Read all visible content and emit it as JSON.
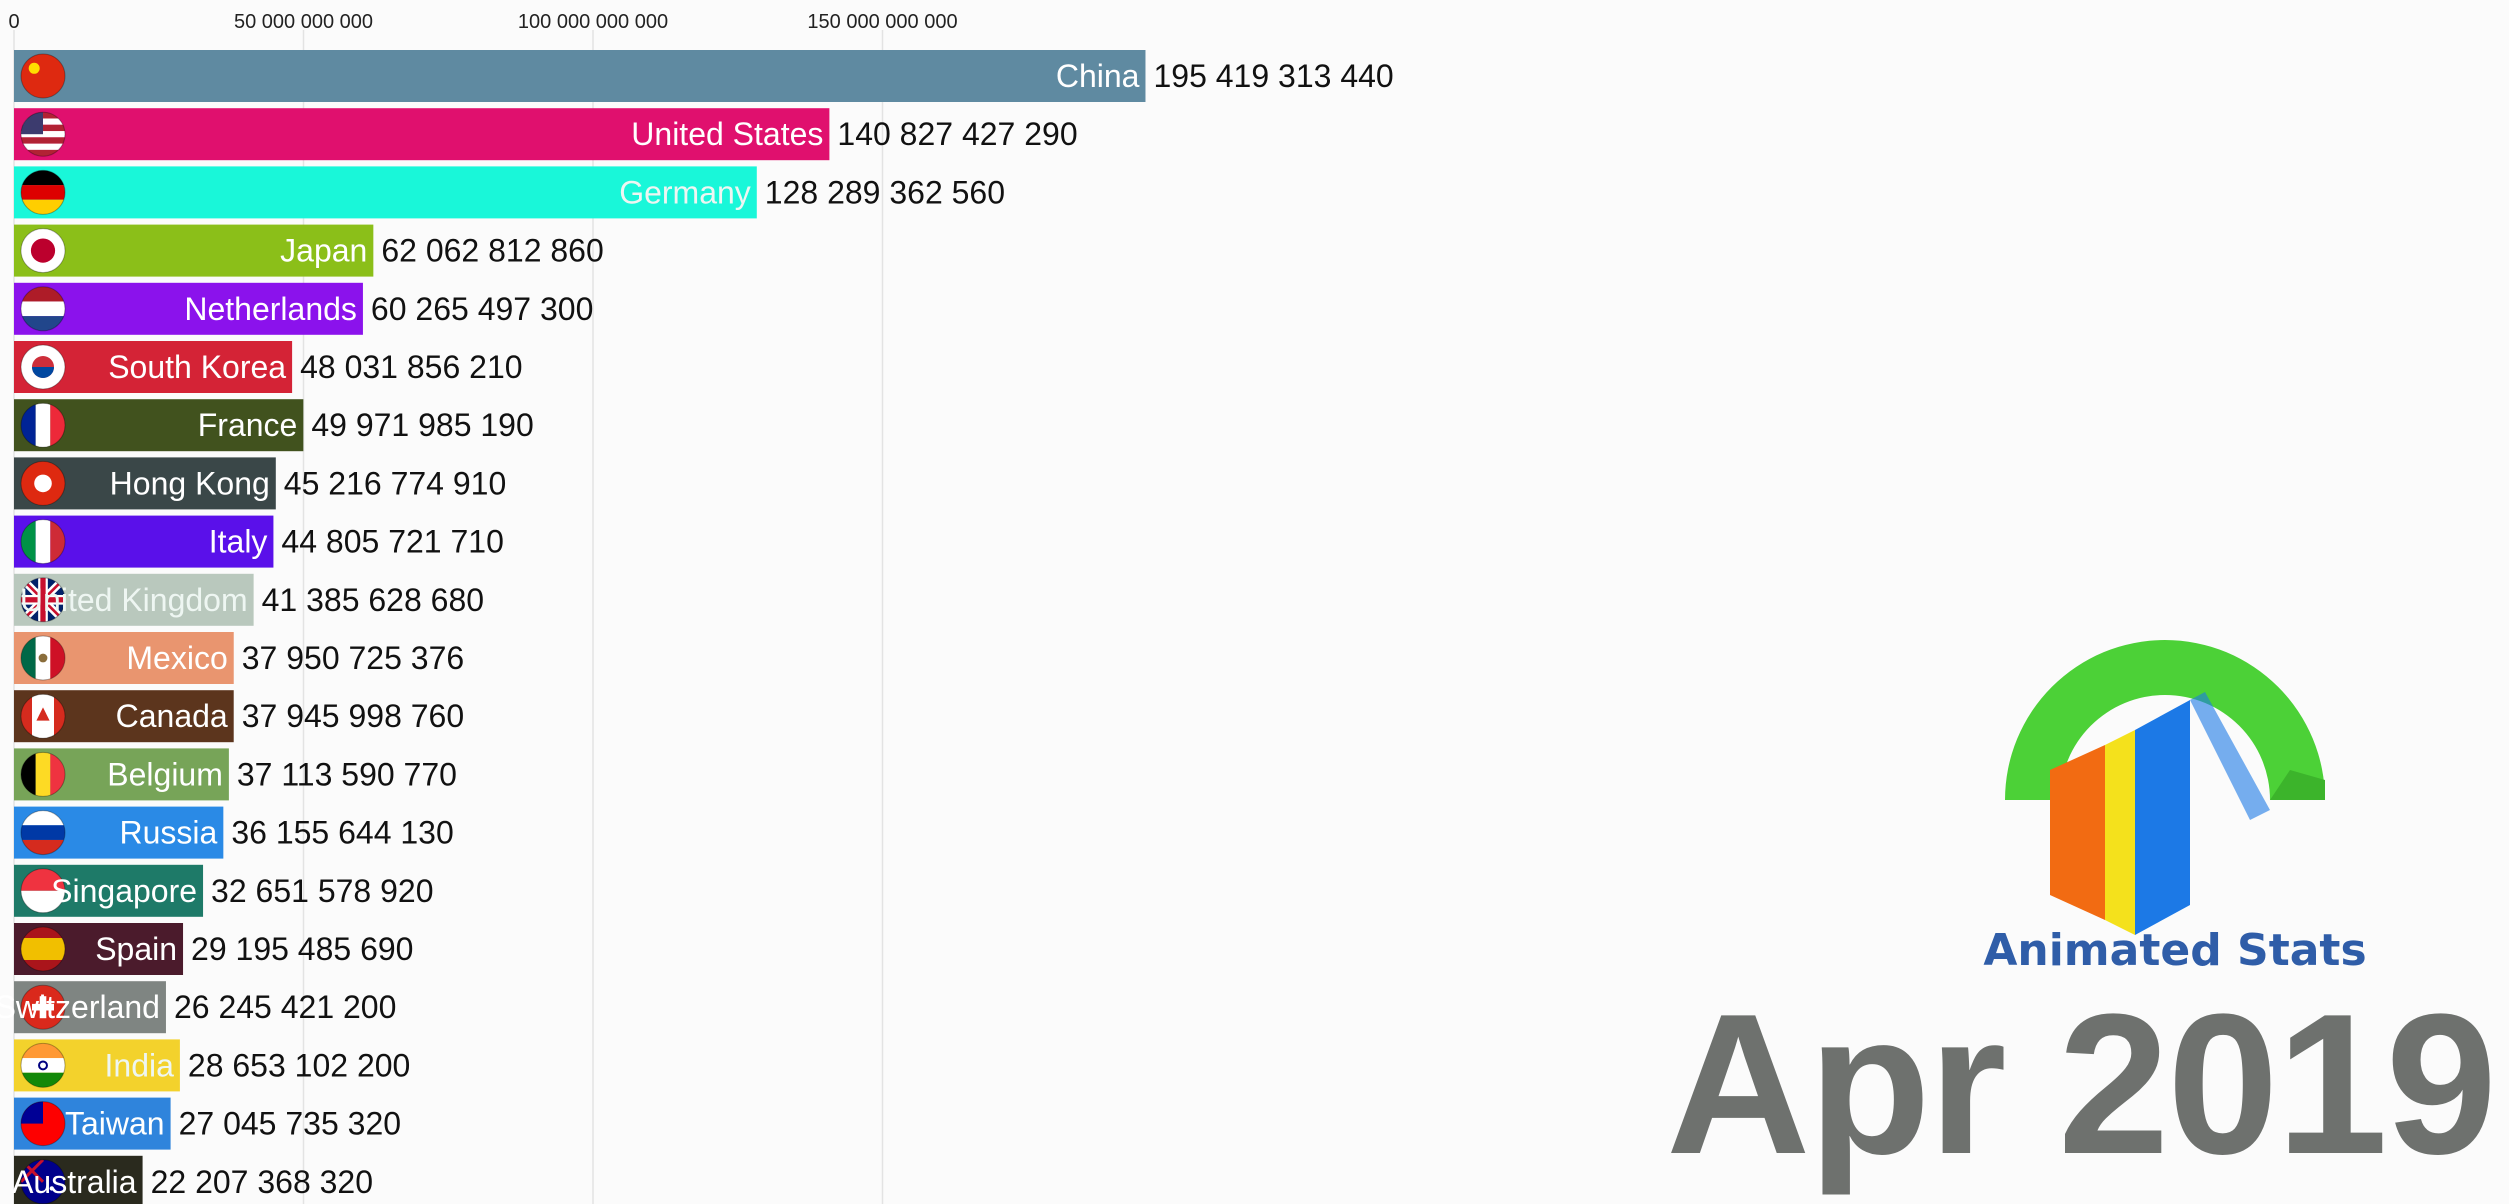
{
  "chart_data": {
    "type": "bar",
    "orientation": "horizontal",
    "x_ticks": [
      "0",
      "50 000 000 000",
      "100 000 000 000",
      "150 000 000 000"
    ],
    "x_tick_values": [
      0,
      50000000000,
      100000000000,
      150000000000
    ],
    "xlim": [
      0,
      200000000000
    ],
    "grid": true,
    "bars": [
      {
        "name": "China",
        "label": "195 419 313 440",
        "value": 195419313440,
        "color": "#5f8aa1",
        "flag": "china-flag-icon",
        "light_text": false
      },
      {
        "name": "United States",
        "label": "140 827 427 290",
        "value": 140827427290,
        "color": "#e0106e",
        "flag": "usa-flag-icon",
        "light_text": false
      },
      {
        "name": "Germany",
        "label": "128 289 362 560",
        "value": 128289362560,
        "color": "#19f7d9",
        "flag": "germany-flag-icon",
        "light_text": true
      },
      {
        "name": "Japan",
        "label": "62 062 812 860",
        "value": 62062812860,
        "color": "#8bbf19",
        "flag": "japan-flag-icon",
        "light_text": false
      },
      {
        "name": "Netherlands",
        "label": "60 265 497 300",
        "value": 60265497300,
        "color": "#8b12ec",
        "flag": "netherlands-flag-icon",
        "light_text": false
      },
      {
        "name": "South Korea",
        "label": "48 031 856 210",
        "value": 48031856210,
        "color": "#d42336",
        "flag": "south-korea-flag-icon",
        "light_text": false
      },
      {
        "name": "France",
        "label": "49 971 985 190",
        "value": 49971985190,
        "color": "#41521e",
        "flag": "france-flag-icon",
        "light_text": false
      },
      {
        "name": "Hong Kong",
        "label": "45 216 774 910",
        "value": 45216774910,
        "color": "#3a4748",
        "flag": "hong-kong-flag-icon",
        "light_text": false
      },
      {
        "name": "Italy",
        "label": "44 805 721 710",
        "value": 44805721710,
        "color": "#5a10ea",
        "flag": "italy-flag-icon",
        "light_text": false
      },
      {
        "name": "United Kingdom",
        "label": "41 385 628 680",
        "value": 41385628680,
        "color": "#b9c8bd",
        "flag": "uk-flag-icon",
        "light_text": true
      },
      {
        "name": "Mexico",
        "label": "37 950 725 376",
        "value": 37950725376,
        "color": "#e9956f",
        "flag": "mexico-flag-icon",
        "light_text": false
      },
      {
        "name": "Canada",
        "label": "37 945 998 760",
        "value": 37945998760,
        "color": "#5c351d",
        "flag": "canada-flag-icon",
        "light_text": false
      },
      {
        "name": "Belgium",
        "label": "37 113 590 770",
        "value": 37113590770,
        "color": "#77a458",
        "flag": "belgium-flag-icon",
        "light_text": false
      },
      {
        "name": "Russia",
        "label": "36 155 644 130",
        "value": 36155644130,
        "color": "#2a8ae6",
        "flag": "russia-flag-icon",
        "light_text": false
      },
      {
        "name": "Singapore",
        "label": "32 651 578 920",
        "value": 32651578920,
        "color": "#1e7a68",
        "flag": "singapore-flag-icon",
        "light_text": false
      },
      {
        "name": "Spain",
        "label": "29 195 485 690",
        "value": 29195485690,
        "color": "#4b1b2c",
        "flag": "spain-flag-icon",
        "light_text": false
      },
      {
        "name": "Switzerland",
        "label": "26 245 421 200",
        "value": 26245421200,
        "color": "#7f8582",
        "flag": "switzerland-flag-icon",
        "light_text": false
      },
      {
        "name": "India",
        "label": "28 653 102 200",
        "value": 28653102200,
        "color": "#f3d22c",
        "flag": "india-flag-icon",
        "light_text": true
      },
      {
        "name": "Taiwan",
        "label": "27 045 735 320",
        "value": 27045735320,
        "color": "#2f84dc",
        "flag": "taiwan-flag-icon",
        "light_text": false
      },
      {
        "name": "Australia",
        "label": "22 207 368 320",
        "value": 22207368320,
        "color": "#2a2a1e",
        "flag": "australia-flag-icon",
        "light_text": false
      }
    ],
    "period_label": "Apr 2019"
  },
  "brand": {
    "name": "Animated Stats",
    "logo_icon": "animated-stats-logo-icon",
    "colors": {
      "ring": "#4cd137",
      "orange": "#f26b12",
      "yellow": "#f4e11c",
      "blue": "#1c79e6"
    }
  }
}
